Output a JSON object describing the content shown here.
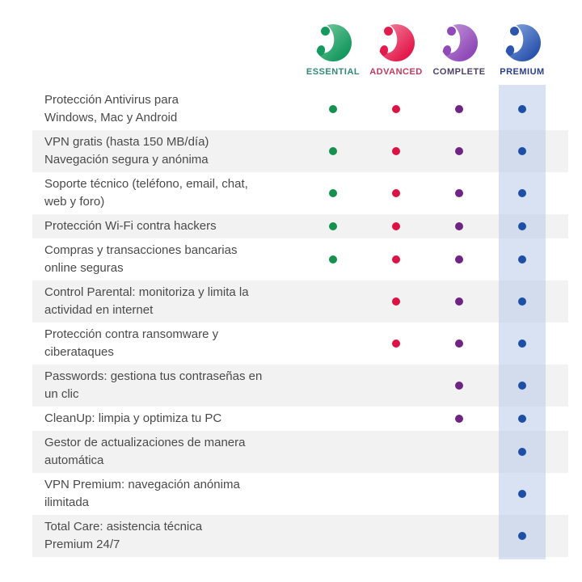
{
  "table_name": "antivirus-plan-comparison",
  "colors": {
    "page_background": "#ffffff",
    "row_alt_background": "#f2f2f2",
    "premium_band": "rgba(184,203,231,0.55)",
    "feature_text": "#4a4a4a"
  },
  "plans": [
    {
      "name": "ESSENTIAL",
      "icon": "panda-logo-green",
      "label_color": "#338a76",
      "grad_light": "#83cfa6",
      "grad_dark": "#15995f",
      "dot_color": "#15914f"
    },
    {
      "name": "ADVANCED",
      "icon": "panda-logo-red",
      "label_color": "#c23a5f",
      "grad_light": "#f48fa8",
      "grad_dark": "#e31b4c",
      "dot_color": "#dc1244"
    },
    {
      "name": "COMPLETE",
      "icon": "panda-logo-purple",
      "label_color": "#4c3f6e",
      "grad_light": "#c79fdc",
      "grad_dark": "#9049b8",
      "dot_color": "#6f2383"
    },
    {
      "name": "PREMIUM",
      "icon": "panda-logo-blue",
      "label_color": "#2c3f8e",
      "grad_light": "#8fb1e8",
      "grad_dark": "#2e55ae",
      "dot_color": "#1d4fa6"
    }
  ],
  "features": [
    {
      "label": "Protección Antivirus para\nWindows, Mac y Android",
      "availability": [
        true,
        true,
        true,
        true
      ]
    },
    {
      "label": "VPN gratis (hasta 150 MB/día)\nNavegación segura y anónima",
      "availability": [
        true,
        true,
        true,
        true
      ]
    },
    {
      "label": "Soporte técnico (teléfono, email, chat,\nweb y foro)",
      "availability": [
        true,
        true,
        true,
        true
      ]
    },
    {
      "label": "Protección Wi-Fi contra hackers",
      "availability": [
        true,
        true,
        true,
        true
      ]
    },
    {
      "label": "Compras y transacciones bancarias\nonline seguras",
      "availability": [
        true,
        true,
        true,
        true
      ]
    },
    {
      "label": "Control Parental: monitoriza y limita la\nactividad en internet",
      "availability": [
        false,
        true,
        true,
        true
      ]
    },
    {
      "label": "Protección contra ransomware y\nciberataques",
      "availability": [
        false,
        true,
        true,
        true
      ]
    },
    {
      "label": "Passwords: gestiona tus contraseñas en\nun clic",
      "availability": [
        false,
        false,
        true,
        true
      ]
    },
    {
      "label": "CleanUp: limpia y optimiza tu PC",
      "availability": [
        false,
        false,
        true,
        true
      ]
    },
    {
      "label": "Gestor de actualizaciones de manera\nautomática",
      "availability": [
        false,
        false,
        false,
        true
      ]
    },
    {
      "label": "VPN Premium: navegación anónima\nilimitada",
      "availability": [
        false,
        false,
        false,
        true
      ]
    },
    {
      "label": "Total Care: asistencia técnica\nPremium 24/7",
      "availability": [
        false,
        false,
        false,
        true
      ]
    }
  ]
}
